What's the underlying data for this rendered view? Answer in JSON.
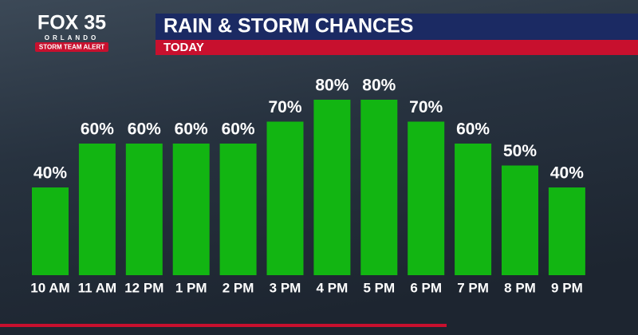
{
  "branding": {
    "station": "FOX 35",
    "city": "ORLANDO",
    "tag": "STORM TEAM ALERT"
  },
  "chart_data": {
    "type": "bar",
    "title": "RAIN & STORM CHANCES",
    "subtitle": "TODAY",
    "categories": [
      "10 AM",
      "11 AM",
      "12 PM",
      "1 PM",
      "2 PM",
      "3 PM",
      "4 PM",
      "5 PM",
      "6 PM",
      "7 PM",
      "8 PM",
      "9 PM"
    ],
    "values": [
      40,
      60,
      60,
      60,
      60,
      70,
      80,
      80,
      70,
      60,
      50,
      40
    ],
    "value_labels": [
      "40%",
      "60%",
      "60%",
      "60%",
      "60%",
      "70%",
      "80%",
      "80%",
      "70%",
      "60%",
      "50%",
      "40%"
    ],
    "color": "#12b512"
  }
}
